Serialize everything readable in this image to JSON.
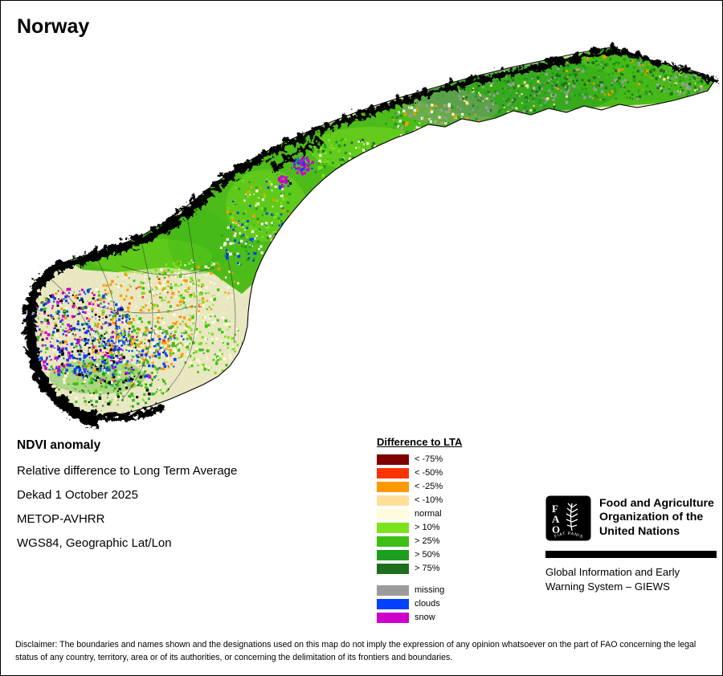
{
  "page": {
    "title": "Norway"
  },
  "info": {
    "heading": "NDVI anomaly",
    "lines": [
      "Relative difference to Long Term Average",
      "Dekad 1 October 2025",
      "METOP-AVHRR",
      "WGS84, Geographic Lat/Lon"
    ]
  },
  "legend": {
    "title": "Difference to LTA",
    "items": [
      {
        "label": "< -75%",
        "color": "#7f0000"
      },
      {
        "label": "< -50%",
        "color": "#ff3300"
      },
      {
        "label": "< -25%",
        "color": "#ff9900"
      },
      {
        "label": "< -10%",
        "color": "#ffdf9b"
      },
      {
        "label": "normal",
        "color": "#fffbdc"
      },
      {
        "label": "> 10%",
        "color": "#7de31d"
      },
      {
        "label": "> 25%",
        "color": "#3fbe16"
      },
      {
        "label": "> 50%",
        "color": "#1e9e1e"
      },
      {
        "label": "> 75%",
        "color": "#1d6e1d"
      }
    ],
    "extra_items": [
      {
        "label": "missing",
        "color": "#9c9c9c"
      },
      {
        "label": "clouds",
        "color": "#0040ff"
      },
      {
        "label": "snow",
        "color": "#cc00cc"
      }
    ]
  },
  "branding": {
    "logo_letters": [
      "F",
      "A",
      "O"
    ],
    "logo_motto": "FIAT PANIS",
    "org_name_lines": [
      "Food and Agriculture",
      "Organization of the",
      "United Nations"
    ],
    "giews_lines": [
      "Global Information and Early",
      "Warning System – GIEWS"
    ]
  },
  "disclaimer": "Disclaimer: The boundaries and names shown and the designations used on this map do not imply the expression of any opinion whatsoever on the part of FAO concerning the legal status of any country, territory, area or of its authorities, or concerning the delimitation of its frontiers and boundaries."
}
